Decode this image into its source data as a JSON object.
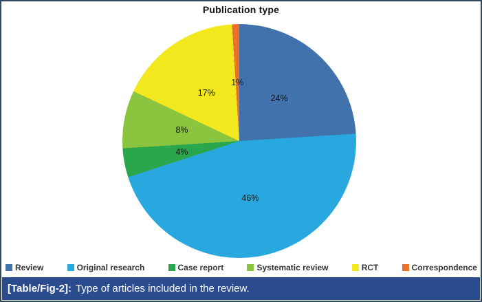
{
  "window": {
    "border_color": "#2e4b5f"
  },
  "chart_data": {
    "type": "pie",
    "title": "Publication type",
    "direction": "clockwise",
    "start_angle_deg": 0,
    "legend_position": "bottom",
    "labels": "percent-inside",
    "slices": [
      {
        "label": "Review",
        "value": 24,
        "pct_label": "24%",
        "color": "#4272ac"
      },
      {
        "label": "Original research",
        "value": 46,
        "pct_label": "46%",
        "color": "#29a8e0"
      },
      {
        "label": "Case report",
        "value": 4,
        "pct_label": "4%",
        "color": "#2aa64c"
      },
      {
        "label": "Systematic review",
        "value": 8,
        "pct_label": "8%",
        "color": "#8bc53f"
      },
      {
        "label": "RCT",
        "value": 17,
        "pct_label": "17%",
        "color": "#f2e81d"
      },
      {
        "label": "Correspondence",
        "value": 1,
        "pct_label": "1%",
        "color": "#e9732c"
      }
    ]
  },
  "caption": {
    "tag": "[Table/Fig-2]:",
    "text": "Type of articles included in the review.",
    "bg_color": "#2b4b8f"
  }
}
